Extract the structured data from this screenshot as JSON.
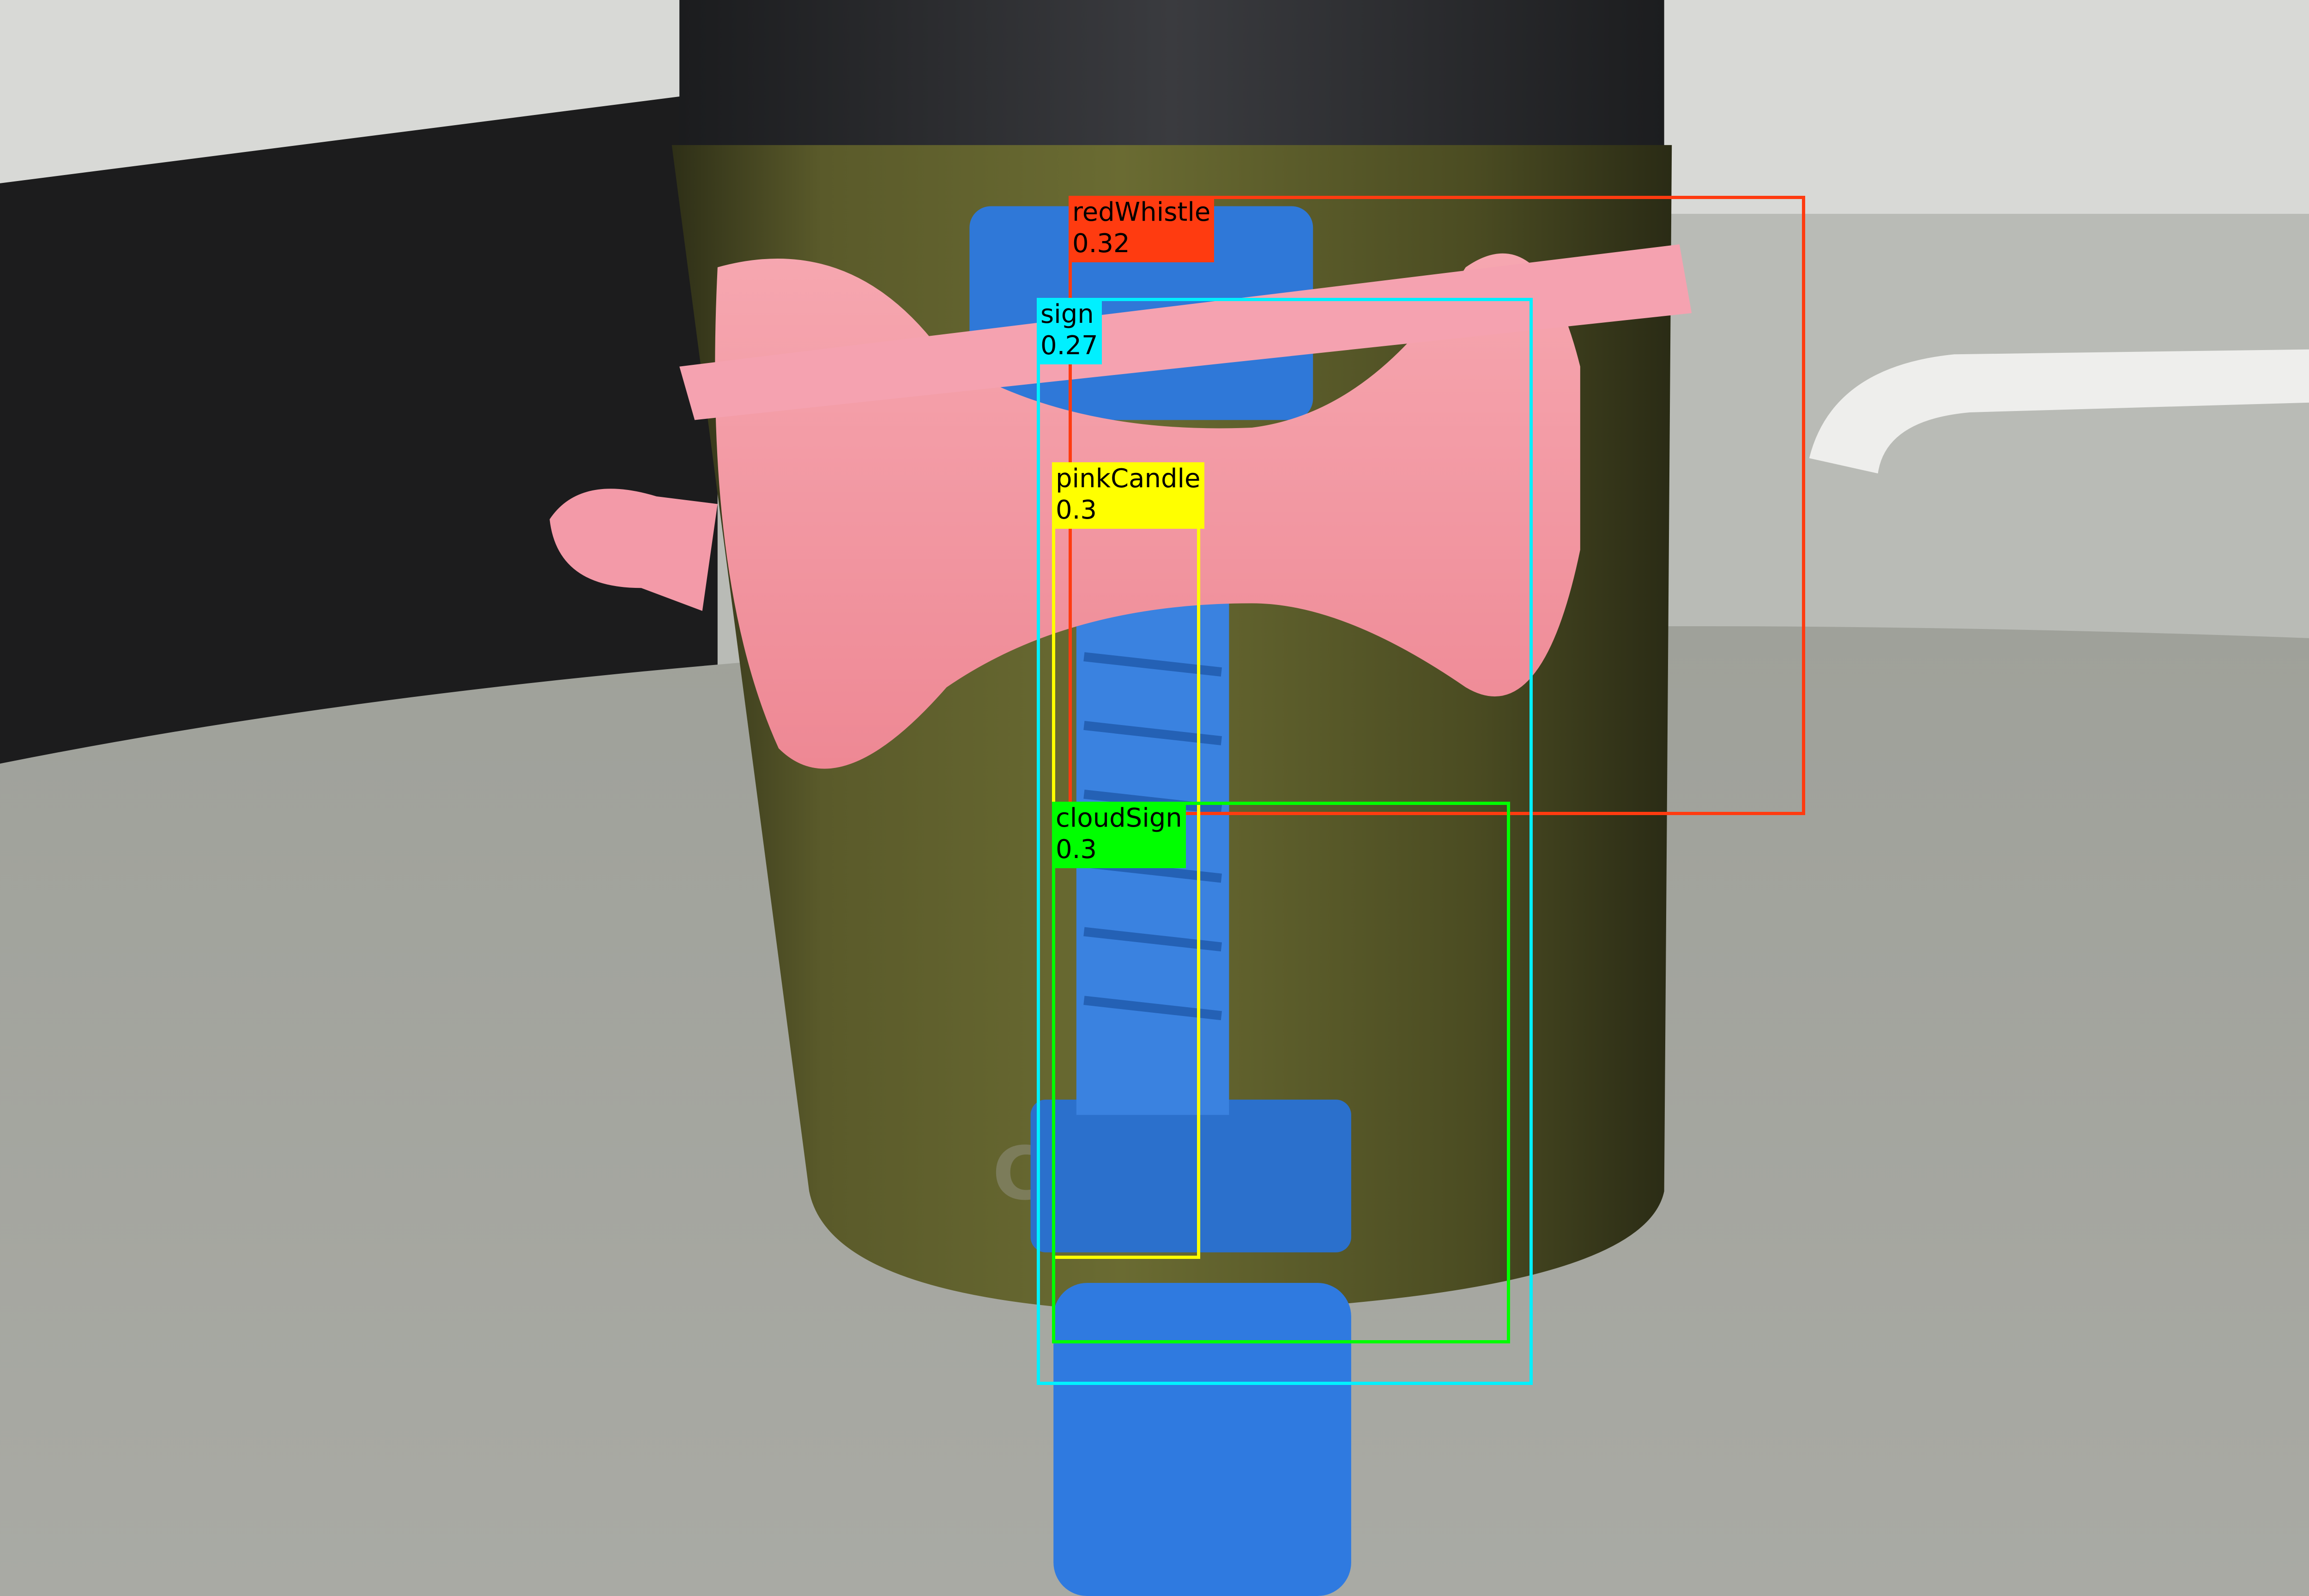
{
  "detections": [
    {
      "label": "redWhistle",
      "score": "0.32",
      "color": "#ff3b10"
    },
    {
      "label": "sign",
      "score": "0.27",
      "color": "#00f0ff"
    },
    {
      "label": "pinkCandle",
      "score": "0.3",
      "color": "#ffff00"
    },
    {
      "label": "cloudSign",
      "score": "0.3",
      "color": "#00ff00"
    }
  ]
}
